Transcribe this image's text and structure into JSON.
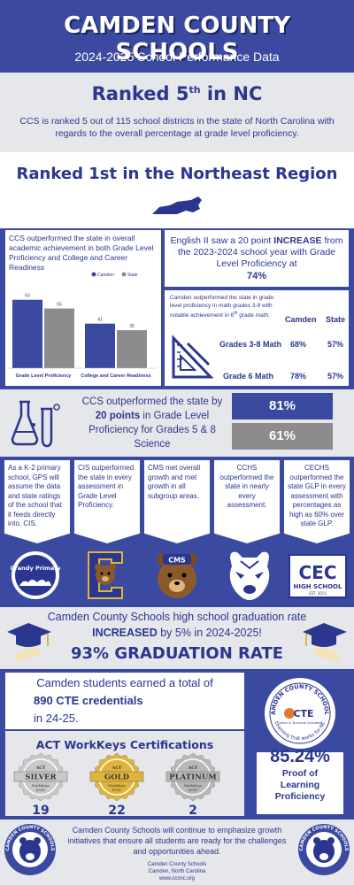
{
  "header": {
    "title": "CAMDEN COUNTY SCHOOLS",
    "subtitle": "2024-2025 School Performance Data"
  },
  "rank_nc": {
    "title_main": "Ranked 5",
    "title_sup": "th",
    "title_end": " in NC",
    "body": "CCS is ranked 5 out of 115 school districts in the state of North Carolina with regards to the overall percentage at grade level proficiency."
  },
  "rank_region": {
    "title": "Ranked 1st in the Northeast Region"
  },
  "achievement": {
    "heading": "CCS outperformed the state in overall academic achievement in both Grade Level Proficiency and College and Career Readiness"
  },
  "chart_data": {
    "type": "bar",
    "categories": [
      "Grade Level Proficiency",
      "College and Career Readiness"
    ],
    "series": [
      {
        "name": "Camden",
        "values": [
          63,
          41
        ],
        "color": "#3a4aa0"
      },
      {
        "name": "State",
        "values": [
          55,
          35
        ],
        "color": "#8c8c8c"
      }
    ],
    "ylim": [
      0,
      75
    ],
    "legend": "top-right",
    "grid": false
  },
  "english": {
    "pre": "English II saw a 20 point ",
    "emph": "INCREASE",
    "post": " from the 2023-2024 school year with Grade Level Proficiency at",
    "value": "74%"
  },
  "math": {
    "desc_a": "Camden outperformed the state in grade level proficiency in math grades 3-8 with notable achievement in 6",
    "desc_sup": "th",
    "desc_b": " grade math.",
    "col_camden": "Camden",
    "col_state": "State",
    "rows": [
      {
        "label": "Grades 3-8 Math",
        "camden": "68%",
        "state": "57%"
      },
      {
        "label": "Grade 6 Math",
        "camden": "78%",
        "state": "57%"
      }
    ]
  },
  "science": {
    "pre": "CCS outperformed the state by ",
    "emph": "20 points",
    "post": " in Grade Level Proficiency for Grades 5 & 8 Science",
    "camden": "81%",
    "state": "61%"
  },
  "schools": [
    {
      "text": "As a K-2 primary school, GPS will assume the data and state ratings of the school that it feeds directly into, CIS."
    },
    {
      "text": "CIS outperformed the state in every assessment in Grade Level Proficiency."
    },
    {
      "text": "CMS met overall growth and met growth in all subgroup areas."
    },
    {
      "text": "CCHS outperformed the state in nearly every assessment."
    },
    {
      "text": "CECHS outperformed the state GLP in every assessment with percentages as high as 60% over state GLP."
    }
  ],
  "logos": {
    "grandy": "Grandy Primary",
    "cms": "CMS",
    "cec": "CEC",
    "cec_sub": "HIGH SCHOOL",
    "cec_est": "EST. 2015"
  },
  "graduation": {
    "line1": "Camden County Schools high school graduation rate",
    "emph": "INCREASED",
    "line2": " by 5% in 2024-2025!",
    "rate": "93% GRADUATION RATE"
  },
  "cte": {
    "line1": "Camden students earned a total of",
    "emph": "890 CTE credentials",
    "line2": "in 24-25.",
    "badge_top": "CAMDEN COUNTY SCHOOLS",
    "badge_label": "CTE",
    "badge_sub": "Career & Technical Education",
    "badge_bottom": "Learning that works for NC"
  },
  "workkeys": {
    "title": "ACT WorkKeys Certifications",
    "medals": [
      {
        "level": "SILVER",
        "count": "19",
        "color": "#c9c9c9"
      },
      {
        "level": "GOLD",
        "count": "22",
        "color": "#e0b43a"
      },
      {
        "level": "PLATINUM",
        "count": "2",
        "color": "#b8b8b8"
      }
    ],
    "act": "ACT",
    "wk": "WorkKeys",
    "ncrc": "NCRC"
  },
  "proof": {
    "value": "85.24%",
    "label": "Proof of Learning Proficiency"
  },
  "footer": {
    "text": "Camden County Schools will continue to emphasize growth initiatives that ensure all students are ready for the challenges and opportunities ahead.",
    "org": "Camden County Schools",
    "city": "Camden, North Carolina",
    "web": "www.ccsnc.org",
    "seal": "CAMDEN COUNTY SCHOOLS"
  },
  "colors": {
    "brand_blue": "#3a4aa0",
    "gray": "#8c8c8c",
    "light_bg": "#e6e7ea"
  }
}
